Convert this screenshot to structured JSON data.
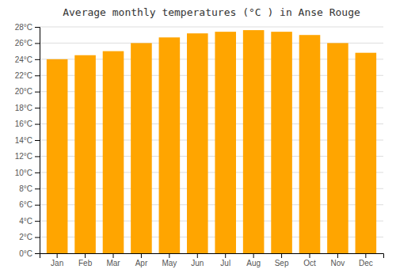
{
  "chart_data": {
    "type": "bar",
    "title": "Average monthly temperatures (°C ) in Anse Rouge",
    "categories": [
      "Jan",
      "Feb",
      "Mar",
      "Apr",
      "May",
      "Jun",
      "Jul",
      "Aug",
      "Sep",
      "Oct",
      "Nov",
      "Dec"
    ],
    "values": [
      24.0,
      24.5,
      25.0,
      26.0,
      26.7,
      27.2,
      27.4,
      27.6,
      27.4,
      27.0,
      26.0,
      24.8
    ],
    "color": "#FFA500",
    "ylim": [
      0,
      28
    ],
    "yticks": [
      {
        "value": 0,
        "label": "0°C"
      },
      {
        "value": 2,
        "label": "2°C"
      },
      {
        "value": 4,
        "label": "4°C"
      },
      {
        "value": 6,
        "label": "6°C"
      },
      {
        "value": 8,
        "label": "8°C"
      },
      {
        "value": 10,
        "label": "10°C"
      },
      {
        "value": 12,
        "label": "12°C"
      },
      {
        "value": 14,
        "label": "14°C"
      },
      {
        "value": 16,
        "label": "16°C"
      },
      {
        "value": 18,
        "label": "18°C"
      },
      {
        "value": 20,
        "label": "20°C"
      },
      {
        "value": 22,
        "label": "22°C"
      },
      {
        "value": 24,
        "label": "24°C"
      },
      {
        "value": 26,
        "label": "26°C"
      },
      {
        "value": 28,
        "label": "28°C"
      }
    ],
    "grid": true
  }
}
